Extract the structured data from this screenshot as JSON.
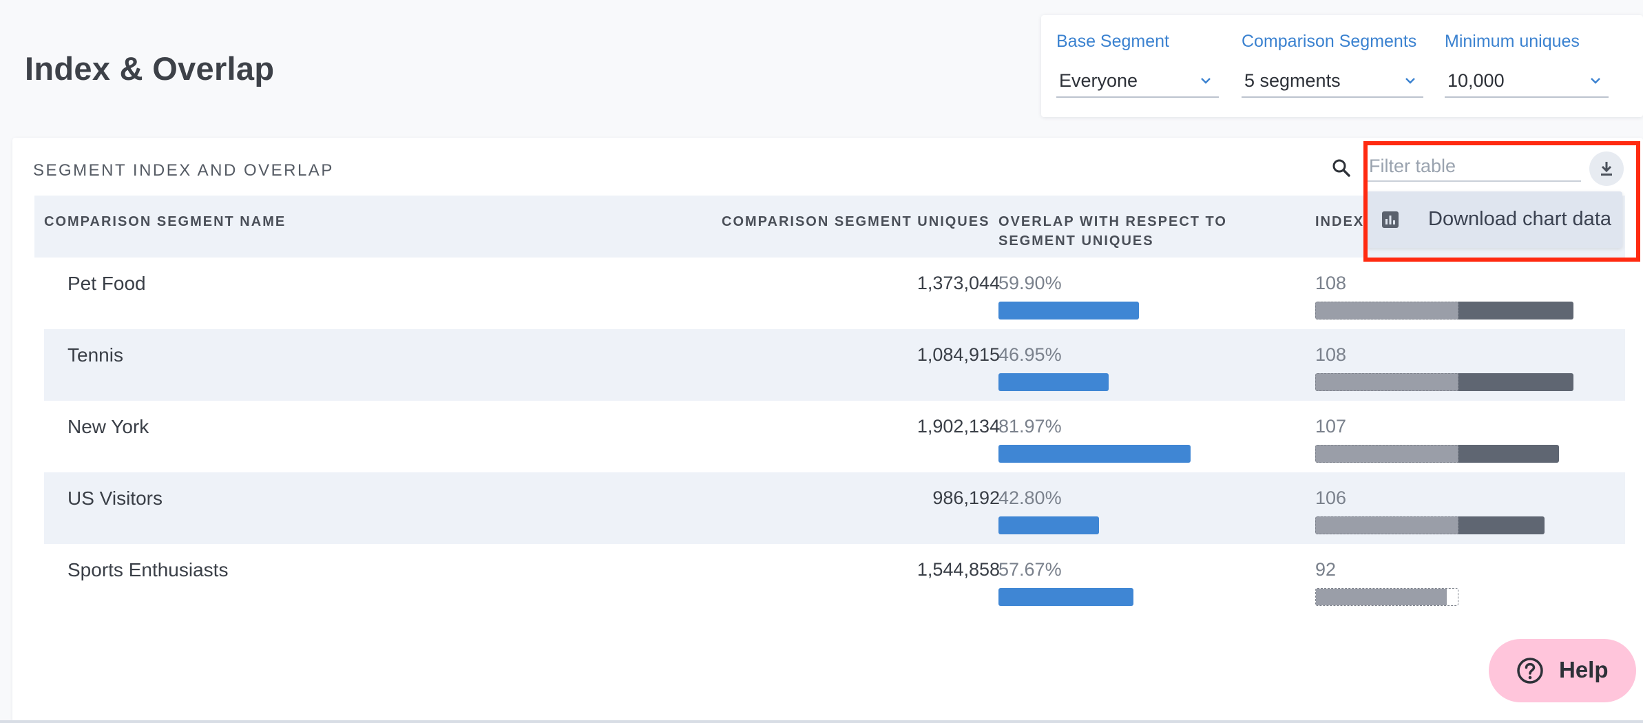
{
  "header": {
    "title": "Index & Overlap"
  },
  "filters": {
    "base_segment": {
      "label": "Base Segment",
      "value": "Everyone"
    },
    "comparison_segments": {
      "label": "Comparison Segments",
      "value": "5 segments"
    },
    "minimum_uniques": {
      "label": "Minimum uniques",
      "value": "10,000"
    }
  },
  "panel": {
    "title": "SEGMENT INDEX AND OVERLAP",
    "filter_placeholder": "Filter table",
    "download_menu_item": "Download chart data"
  },
  "table": {
    "columns": {
      "name": "COMPARISON SEGMENT NAME",
      "uniques": "COMPARISON SEGMENT UNIQUES",
      "overlap_line1": "OVERLAP WITH RESPECT TO",
      "overlap_line2": "SEGMENT UNIQUES",
      "index": "INDEX"
    },
    "rows": [
      {
        "name": "Pet Food",
        "uniques": "1,373,044",
        "overlap": "59.90%",
        "overlap_value": 59.9,
        "index": "108",
        "index_value": 108
      },
      {
        "name": "Tennis",
        "uniques": "1,084,915",
        "overlap": "46.95%",
        "overlap_value": 46.95,
        "index": "108",
        "index_value": 108
      },
      {
        "name": "New York",
        "uniques": "1,902,134",
        "overlap": "81.97%",
        "overlap_value": 81.97,
        "index": "107",
        "index_value": 107
      },
      {
        "name": "US Visitors",
        "uniques": "986,192",
        "overlap": "42.80%",
        "overlap_value": 42.8,
        "index": "106",
        "index_value": 106
      },
      {
        "name": "Sports Enthusiasts",
        "uniques": "1,544,858",
        "overlap": "57.67%",
        "overlap_value": 57.67,
        "index": "92",
        "index_value": 92
      }
    ]
  },
  "help": {
    "label": "Help"
  },
  "colors": {
    "accent": "#3b82d0",
    "overlap_bar": "#3f86d4",
    "index_bar": "#5f6672",
    "highlight": "#ff2a10",
    "help_bg": "#ffc5db"
  },
  "icons": {
    "search": "search-icon",
    "download": "download-icon",
    "menu_item": "bar-chart-icon",
    "dropdown": "chevron-down-icon",
    "help": "question-circle-icon"
  }
}
